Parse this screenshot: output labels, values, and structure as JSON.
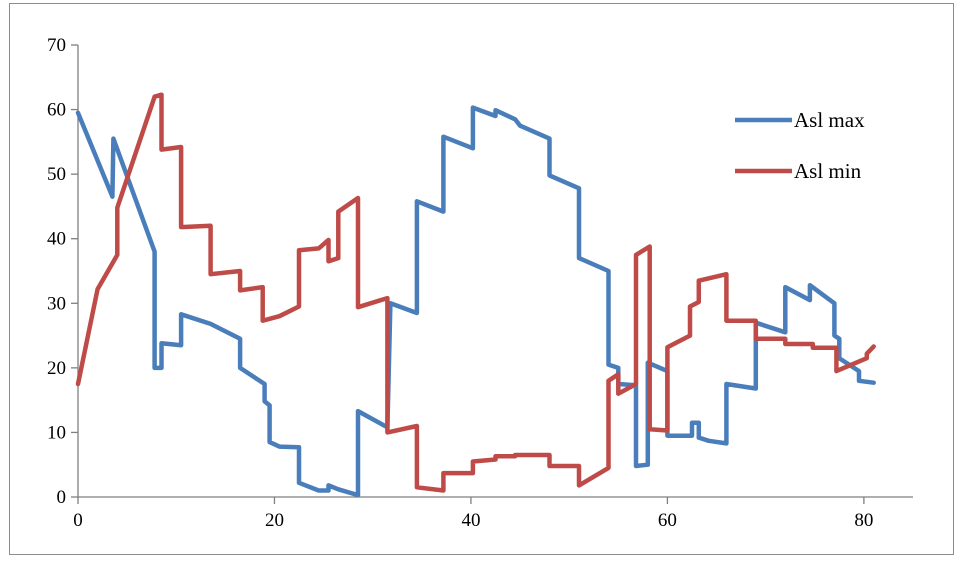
{
  "chart_data": {
    "type": "line",
    "title": "",
    "xlabel": "",
    "ylabel": "",
    "xlim": [
      0,
      85
    ],
    "ylim": [
      0,
      70
    ],
    "xticks": [
      0,
      20,
      40,
      60,
      80
    ],
    "yticks": [
      0,
      10,
      20,
      30,
      40,
      50,
      60,
      70
    ],
    "grid": false,
    "legend_position": "top-right",
    "series": [
      {
        "name": "Asl max",
        "color": "#4a7ebb",
        "points": [
          [
            0,
            59.5
          ],
          [
            3.5,
            46.5
          ],
          [
            3.6,
            55.5
          ],
          [
            7.8,
            38
          ],
          [
            7.8,
            20
          ],
          [
            8.5,
            20
          ],
          [
            8.5,
            23.8
          ],
          [
            10.5,
            23.5
          ],
          [
            10.5,
            28.3
          ],
          [
            13.5,
            26.8
          ],
          [
            16.5,
            24.5
          ],
          [
            16.5,
            20
          ],
          [
            19,
            17.5
          ],
          [
            19,
            14.8
          ],
          [
            19.5,
            14.2
          ],
          [
            19.5,
            8.5
          ],
          [
            20.5,
            7.8
          ],
          [
            22.5,
            7.7
          ],
          [
            22.5,
            2.2
          ],
          [
            24.5,
            1
          ],
          [
            25.5,
            1
          ],
          [
            25.5,
            1.8
          ],
          [
            26.5,
            1.2
          ],
          [
            28.5,
            0.3
          ],
          [
            28.5,
            13.3
          ],
          [
            31.5,
            10.8
          ],
          [
            31.8,
            30
          ],
          [
            34.5,
            28.5
          ],
          [
            34.5,
            45.8
          ],
          [
            37.2,
            44.2
          ],
          [
            37.2,
            55.8
          ],
          [
            40.2,
            54
          ],
          [
            40.2,
            60.3
          ],
          [
            42.5,
            59
          ],
          [
            42.5,
            59.9
          ],
          [
            44.5,
            58.5
          ],
          [
            45,
            57.5
          ],
          [
            48,
            55.5
          ],
          [
            48,
            49.8
          ],
          [
            51,
            47.8
          ],
          [
            51,
            37
          ],
          [
            54,
            35
          ],
          [
            54,
            20.5
          ],
          [
            55,
            20
          ],
          [
            55,
            17.5
          ],
          [
            56.8,
            17.3
          ],
          [
            56.8,
            4.8
          ],
          [
            58,
            5
          ],
          [
            58,
            20.8
          ],
          [
            60,
            19.5
          ],
          [
            60,
            9.5
          ],
          [
            62.5,
            9.5
          ],
          [
            62.5,
            11.5
          ],
          [
            63.2,
            11.5
          ],
          [
            63.2,
            9.2
          ],
          [
            64.2,
            8.7
          ],
          [
            66,
            8.3
          ],
          [
            66,
            17.5
          ],
          [
            69,
            16.8
          ],
          [
            69,
            27
          ],
          [
            72,
            25.5
          ],
          [
            72,
            32.5
          ],
          [
            74.5,
            30.5
          ],
          [
            74.5,
            32.8
          ],
          [
            77,
            30
          ],
          [
            77,
            25
          ],
          [
            77.5,
            24.5
          ],
          [
            77.5,
            21.5
          ],
          [
            79.5,
            19.5
          ],
          [
            79.5,
            18
          ],
          [
            81,
            17.7
          ]
        ]
      },
      {
        "name": "Asl min",
        "color": "#be4b48",
        "points": [
          [
            0,
            17.5
          ],
          [
            2,
            32.2
          ],
          [
            4,
            37.5
          ],
          [
            4,
            44.8
          ],
          [
            7.8,
            62
          ],
          [
            8.5,
            62.3
          ],
          [
            8.5,
            53.8
          ],
          [
            10.5,
            54.2
          ],
          [
            10.5,
            41.8
          ],
          [
            13.5,
            42
          ],
          [
            13.5,
            34.5
          ],
          [
            16.5,
            35
          ],
          [
            16.5,
            32
          ],
          [
            18.8,
            32.5
          ],
          [
            18.8,
            27.3
          ],
          [
            20.5,
            28
          ],
          [
            22.5,
            29.5
          ],
          [
            22.5,
            38.2
          ],
          [
            24.5,
            38.5
          ],
          [
            25.5,
            39.8
          ],
          [
            25.5,
            36.5
          ],
          [
            26.5,
            37
          ],
          [
            26.5,
            44.2
          ],
          [
            28.5,
            46.3
          ],
          [
            28.5,
            29.4
          ],
          [
            31.5,
            30.8
          ],
          [
            31.5,
            10
          ],
          [
            34.5,
            11
          ],
          [
            34.5,
            1.5
          ],
          [
            37.2,
            1
          ],
          [
            37.2,
            3.7
          ],
          [
            40.2,
            3.7
          ],
          [
            40.2,
            5.5
          ],
          [
            42.5,
            5.8
          ],
          [
            42.5,
            6.3
          ],
          [
            44.5,
            6.3
          ],
          [
            44.5,
            6.5
          ],
          [
            48,
            6.5
          ],
          [
            48,
            4.8
          ],
          [
            51,
            4.8
          ],
          [
            51,
            1.8
          ],
          [
            54,
            4.5
          ],
          [
            54,
            18
          ],
          [
            55,
            19
          ],
          [
            55,
            16
          ],
          [
            56.8,
            17.5
          ],
          [
            56.8,
            37.5
          ],
          [
            58.2,
            38.8
          ],
          [
            58.2,
            10.5
          ],
          [
            60,
            10.3
          ],
          [
            60,
            23.2
          ],
          [
            62.3,
            25
          ],
          [
            62.3,
            29.5
          ],
          [
            63.2,
            30.2
          ],
          [
            63.2,
            33.5
          ],
          [
            66,
            34.5
          ],
          [
            66,
            27.3
          ],
          [
            69,
            27.3
          ],
          [
            69,
            24.5
          ],
          [
            72,
            24.5
          ],
          [
            72,
            23.7
          ],
          [
            74.8,
            23.7
          ],
          [
            74.8,
            23.1
          ],
          [
            77.2,
            23.1
          ],
          [
            77.2,
            19.5
          ],
          [
            80.3,
            21.5
          ],
          [
            80.3,
            22.2
          ],
          [
            81,
            23.3
          ]
        ]
      }
    ]
  }
}
